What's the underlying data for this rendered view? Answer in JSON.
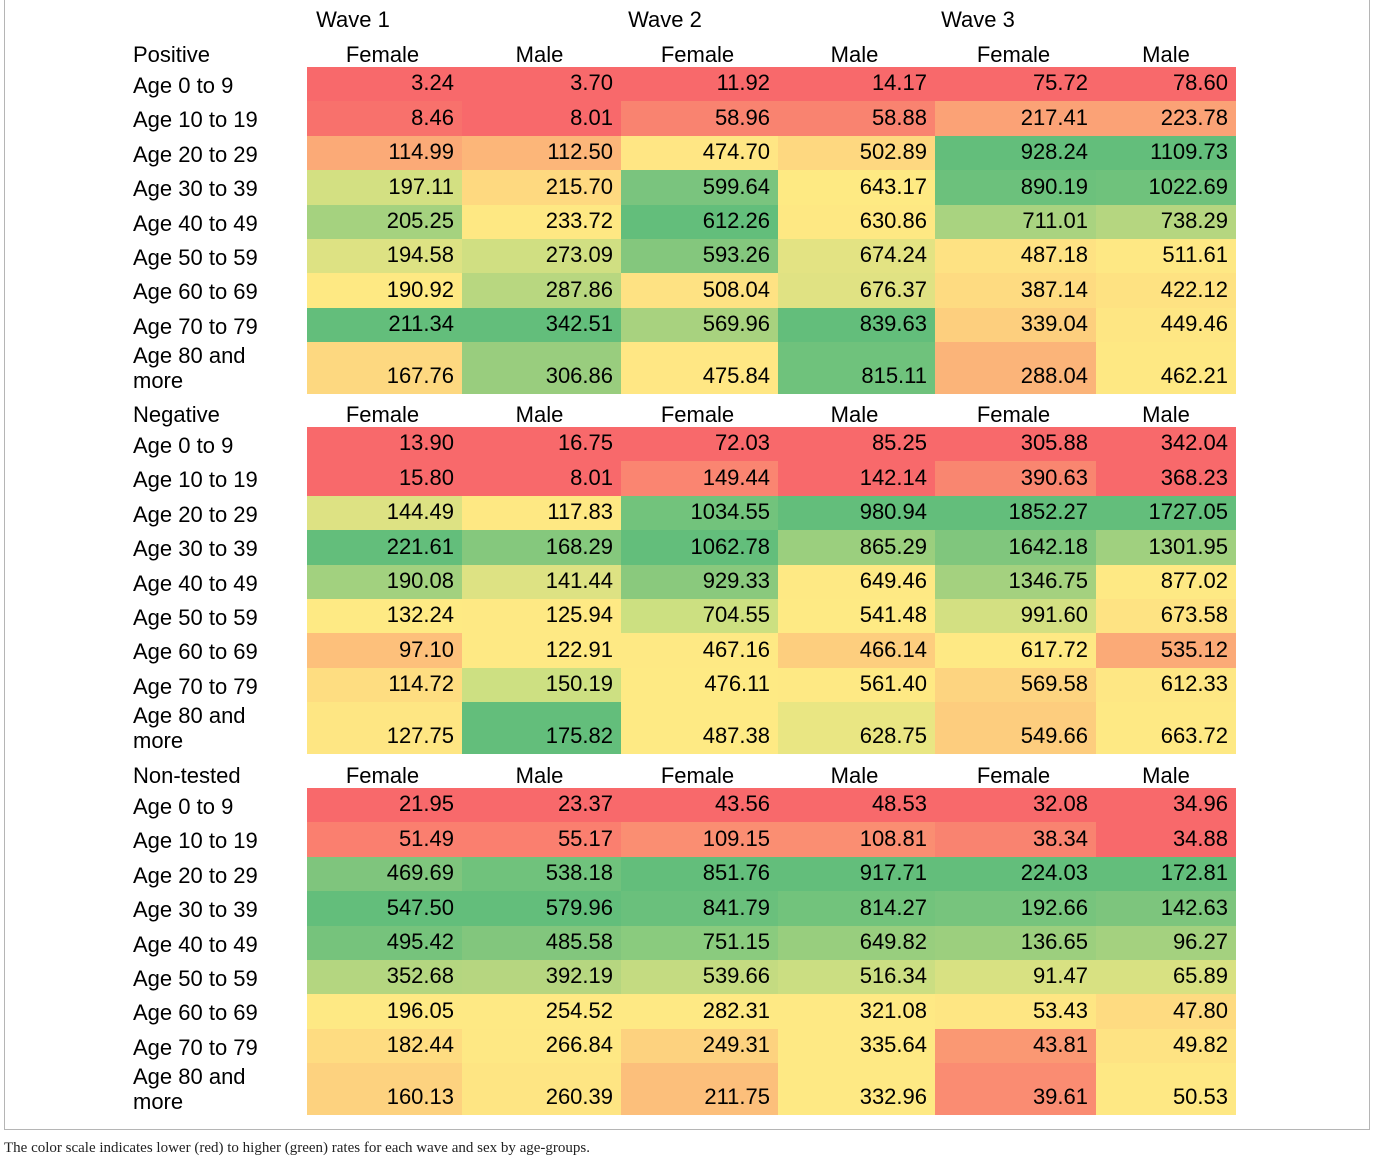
{
  "chart_data": {
    "type": "table",
    "waves": [
      "Wave 1",
      "Wave 2",
      "Wave 3"
    ],
    "columns": [
      "Female",
      "Male",
      "Female",
      "Male",
      "Female",
      "Male"
    ],
    "sections": [
      {
        "name": "Positive",
        "rows": [
          {
            "label": "Age 0 to 9",
            "values": [
              3.24,
              3.7,
              11.92,
              14.17,
              75.72,
              78.6
            ],
            "colors": [
              "#f8696b",
              "#f8696b",
              "#f8696b",
              "#f8696b",
              "#f8696b",
              "#f8696b"
            ]
          },
          {
            "label": "Age 10 to 19",
            "values": [
              8.46,
              8.01,
              58.96,
              58.88,
              217.41,
              223.78
            ],
            "colors": [
              "#f8716c",
              "#f8696b",
              "#f98370",
              "#f98370",
              "#fba276",
              "#fba276"
            ]
          },
          {
            "label": "Age 20 to 29",
            "values": [
              114.99,
              112.5,
              474.7,
              502.89,
              928.24,
              1109.73
            ],
            "colors": [
              "#fbaa77",
              "#fcb679",
              "#ffe684",
              "#fed880",
              "#63be7b",
              "#63be7b"
            ]
          },
          {
            "label": "Age 30 to 39",
            "values": [
              197.11,
              215.7,
              599.64,
              643.17,
              890.19,
              1022.69
            ],
            "colors": [
              "#d3e082",
              "#fed980",
              "#7ac47e",
              "#feea83",
              "#6cc17c",
              "#6fc27c"
            ]
          },
          {
            "label": "Age 40 to 49",
            "values": [
              205.25,
              233.72,
              612.26,
              630.86,
              711.01,
              738.29
            ],
            "colors": [
              "#a5d27f",
              "#fee883",
              "#63be7b",
              "#fee883",
              "#a9d380",
              "#b5d680"
            ]
          },
          {
            "label": "Age 50 to 59",
            "values": [
              194.58,
              273.09,
              593.26,
              674.24,
              487.18,
              511.61
            ],
            "colors": [
              "#dde283",
              "#d0df82",
              "#84c77d",
              "#e3e383",
              "#fee283",
              "#fee884"
            ]
          },
          {
            "label": "Age 60 to 69",
            "values": [
              190.92,
              287.86,
              508.04,
              676.37,
              387.14,
              422.12
            ],
            "colors": [
              "#fee983",
              "#b8d780",
              "#fee283",
              "#e0e283",
              "#fedb81",
              "#fee282"
            ]
          },
          {
            "label": "Age 70 to 79",
            "values": [
              211.34,
              342.51,
              569.96,
              839.63,
              339.04,
              449.46
            ],
            "colors": [
              "#63be7b",
              "#63be7b",
              "#a8d27f",
              "#63be7b",
              "#fdcf7e",
              "#fee683"
            ]
          },
          {
            "label": "Age 80 and\nmore",
            "values": [
              167.76,
              306.86,
              475.84,
              815.11,
              288.04,
              462.21
            ],
            "colors": [
              "#fdd880",
              "#99cd7e",
              "#ffe784",
              "#6fc27c",
              "#fbb479",
              "#fee883"
            ]
          }
        ]
      },
      {
        "name": "Negative",
        "rows": [
          {
            "label": "Age 0 to 9",
            "values": [
              13.9,
              16.75,
              72.03,
              85.25,
              305.88,
              342.04
            ],
            "colors": [
              "#f8696b",
              "#f8696b",
              "#f8696b",
              "#f8696b",
              "#f8696b",
              "#f8696b"
            ]
          },
          {
            "label": "Age 10 to 19",
            "values": [
              15.8,
              8.01,
              149.44,
              142.14,
              390.63,
              368.23
            ],
            "colors": [
              "#f8696b",
              "#f8696b",
              "#fa8571",
              "#f8696b",
              "#f98670",
              "#f8696b"
            ]
          },
          {
            "label": "Age 20 to 29",
            "values": [
              144.49,
              117.83,
              1034.55,
              980.94,
              1852.27,
              1727.05
            ],
            "colors": [
              "#dde283",
              "#fee883",
              "#72c37c",
              "#63be7b",
              "#63be7b",
              "#63be7b"
            ]
          },
          {
            "label": "Age 30 to 39",
            "values": [
              221.61,
              168.29,
              1062.78,
              865.29,
              1642.18,
              1301.95
            ],
            "colors": [
              "#63be7b",
              "#85c87d",
              "#63be7b",
              "#9bcf7e",
              "#80c67d",
              "#a0d07f"
            ]
          },
          {
            "label": "Age 40 to 49",
            "values": [
              190.08,
              141.44,
              929.33,
              649.46,
              1346.75,
              877.02
            ],
            "colors": [
              "#a2d17f",
              "#dde283",
              "#8ac97d",
              "#fee984",
              "#a4d17f",
              "#fee984"
            ]
          },
          {
            "label": "Age 50 to 59",
            "values": [
              132.24,
              125.94,
              704.55,
              541.48,
              991.6,
              673.58
            ],
            "colors": [
              "#feea84",
              "#fee984",
              "#cce081",
              "#feea84",
              "#d3e082",
              "#fee383"
            ]
          },
          {
            "label": "Age 60 to 69",
            "values": [
              97.1,
              122.91,
              467.16,
              466.14,
              617.72,
              535.12
            ],
            "colors": [
              "#fdc07b",
              "#fee984",
              "#fee984",
              "#fdce7e",
              "#fee984",
              "#fbaa77"
            ]
          },
          {
            "label": "Age 70 to 79",
            "values": [
              114.72,
              150.19,
              476.11,
              561.4,
              569.58,
              612.33
            ],
            "colors": [
              "#fedd81",
              "#cde082",
              "#feea84",
              "#fee984",
              "#fdd480",
              "#fee784"
            ]
          },
          {
            "label": "Age 80 and\nmore",
            "values": [
              127.75,
              175.82,
              487.38,
              628.75,
              549.66,
              663.72
            ],
            "colors": [
              "#fee683",
              "#63be7b",
              "#feea84",
              "#e9e683",
              "#fdcd7e",
              "#fee984"
            ]
          }
        ]
      },
      {
        "name": "Non-tested",
        "rows": [
          {
            "label": "Age 0 to 9",
            "values": [
              21.95,
              23.37,
              43.56,
              48.53,
              32.08,
              34.96
            ],
            "colors": [
              "#f8696b",
              "#f8696b",
              "#f8696b",
              "#f8696b",
              "#f8696b",
              "#f8696b"
            ]
          },
          {
            "label": "Age 10 to 19",
            "values": [
              51.49,
              55.17,
              109.15,
              108.81,
              38.34,
              34.88
            ],
            "colors": [
              "#fa7f6f",
              "#fa7f6f",
              "#fa8e72",
              "#fa8e72",
              "#f98370",
              "#f8696b"
            ]
          },
          {
            "label": "Age 20 to 29",
            "values": [
              469.69,
              538.18,
              851.76,
              917.71,
              224.03,
              172.81
            ],
            "colors": [
              "#7fc57d",
              "#70c27c",
              "#63be7b",
              "#63be7b",
              "#63be7b",
              "#63be7b"
            ]
          },
          {
            "label": "Age 30 to 39",
            "values": [
              547.5,
              579.96,
              841.79,
              814.27,
              192.66,
              142.63
            ],
            "colors": [
              "#63be7b",
              "#63be7b",
              "#6ac07c",
              "#72c37c",
              "#77c47d",
              "#7dc57d"
            ]
          },
          {
            "label": "Age 40 to 49",
            "values": [
              495.42,
              485.58,
              751.15,
              649.82,
              136.65,
              96.27
            ],
            "colors": [
              "#76c37c",
              "#82c67d",
              "#8acb7e",
              "#98ce7e",
              "#9ccf7e",
              "#a4d17f"
            ]
          },
          {
            "label": "Age 50 to 59",
            "values": [
              352.68,
              392.19,
              539.66,
              516.34,
              91.47,
              65.89
            ],
            "colors": [
              "#b4d680",
              "#b6d680",
              "#c4db81",
              "#cbde82",
              "#d8e182",
              "#d8e182"
            ]
          },
          {
            "label": "Age 60 to 69",
            "values": [
              196.05,
              254.52,
              282.31,
              321.08,
              53.43,
              47.8
            ],
            "colors": [
              "#fee984",
              "#fee984",
              "#fee984",
              "#fee984",
              "#fee683",
              "#fedb81"
            ]
          },
          {
            "label": "Age 70 to 79",
            "values": [
              182.44,
              266.84,
              249.31,
              335.64,
              43.81,
              49.82
            ],
            "colors": [
              "#fedc81",
              "#fee884",
              "#fdd27f",
              "#fee984",
              "#fa9873",
              "#fee383"
            ]
          },
          {
            "label": "Age 80 and\nmore",
            "values": [
              160.13,
              260.39,
              211.75,
              332.96,
              39.61,
              50.53
            ],
            "colors": [
              "#fdd27f",
              "#fee583",
              "#fcbf7b",
              "#fee984",
              "#fa8c72",
              "#fee884"
            ]
          }
        ]
      }
    ]
  },
  "caption": "The color scale indicates lower (red) to higher (green) rates for each wave and sex by age-groups."
}
